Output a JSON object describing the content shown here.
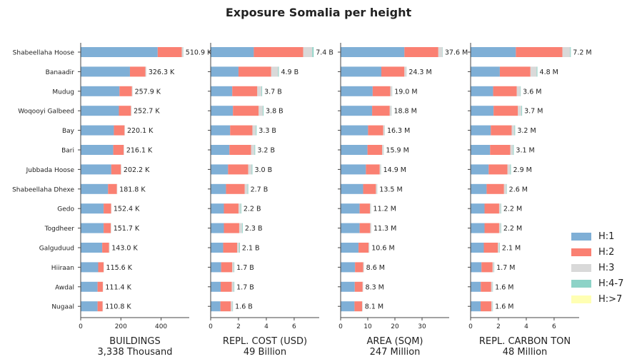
{
  "chart_data": {
    "type": "bar",
    "title": "Exposure Somalia per height",
    "categories": [
      "Shabeellaha Hoose",
      "Banaadir",
      "Mudug",
      "Woqooyi Galbeed",
      "Bay",
      "Bari",
      "Jubbada Hoose",
      "Shabeellaha Dhexe",
      "Gedo",
      "Togdheer",
      "Galguduud",
      "Hiiraan",
      "Awdal",
      "Nugaal"
    ],
    "legend": {
      "placement": "right",
      "entries": [
        {
          "name": "H:1",
          "color": "#7fafd6"
        },
        {
          "name": "H:2",
          "color": "#fa8072"
        },
        {
          "name": "H:3",
          "color": "#d9d9d9"
        },
        {
          "name": "H:4-7",
          "color": "#8dd3c7"
        },
        {
          "name": "H:>7",
          "color": "#ffffb3"
        }
      ]
    },
    "panels": [
      {
        "xlabel": "BUILDINGS",
        "xlabel_total": "3,338 Thousand",
        "xlim": [
          0,
          540
        ],
        "ticks": [
          0,
          200,
          400
        ],
        "tick_labels": [
          "0",
          "200",
          "400"
        ],
        "totals_labels": [
          "510.9 K",
          "326.3 K",
          "257.9 K",
          "252.7 K",
          "220.1 K",
          "216.1 K",
          "202.2 K",
          "181.8 K",
          "152.4 K",
          "151.7 K",
          "143.0 K",
          "115.6 K",
          "111.4 K",
          "110.8 K"
        ],
        "series": [
          {
            "name": "H:1",
            "values": [
              383,
              245,
              193,
              190,
              165,
              162,
              152,
              136,
              114,
              114,
              107,
              87,
              84,
              84
            ]
          },
          {
            "name": "H:2",
            "values": [
              120,
              77,
              62,
              60,
              53,
              52,
              48,
              44,
              37,
              36,
              34,
              27,
              26,
              25
            ]
          },
          {
            "name": "H:3",
            "values": [
              7,
              4,
              2.5,
              2.5,
              2,
              2,
              2,
              1.7,
              1.4,
              1.4,
              1.4,
              1.4,
              1.2,
              1.6
            ]
          },
          {
            "name": "H:4-7",
            "values": [
              0.9,
              0.3,
              0.4,
              0.2,
              0.1,
              0.1,
              0.2,
              0.1,
              0,
              0.3,
              0.6,
              0.2,
              0.2,
              0.2
            ]
          },
          {
            "name": "H:>7",
            "values": [
              0,
              0,
              0,
              0,
              0,
              0,
              0,
              0,
              0,
              0,
              0,
              0,
              0,
              0
            ]
          }
        ]
      },
      {
        "xlabel": "REPL. COST (USD)",
        "xlabel_total": "49 Billion",
        "xlim": [
          0,
          7.8
        ],
        "ticks": [
          0,
          2,
          4,
          6
        ],
        "tick_labels": [
          "0",
          "2",
          "4",
          "6"
        ],
        "totals_labels": [
          "7.4 B",
          "4.9 B",
          "3.7 B",
          "3.8 B",
          "3.3 B",
          "3.2 B",
          "3.0 B",
          "2.7 B",
          "2.2 B",
          "2.3 B",
          "2.1 B",
          "1.7 B",
          "1.7 B",
          "1.6 B"
        ],
        "series": [
          {
            "name": "H:1",
            "values": [
              3.1,
              2.0,
              1.55,
              1.6,
              1.4,
              1.35,
              1.25,
              1.1,
              0.95,
              0.95,
              0.9,
              0.75,
              0.72,
              0.7
            ]
          },
          {
            "name": "H:2",
            "values": [
              3.55,
              2.35,
              1.8,
              1.85,
              1.6,
              1.55,
              1.45,
              1.35,
              1.05,
              1.1,
              1.0,
              0.8,
              0.8,
              0.75
            ]
          },
          {
            "name": "H:3",
            "values": [
              0.65,
              0.5,
              0.3,
              0.3,
              0.25,
              0.25,
              0.25,
              0.2,
              0.15,
              0.2,
              0.15,
              0.12,
              0.14,
              0.12
            ]
          },
          {
            "name": "H:4-7",
            "values": [
              0.1,
              0.05,
              0.05,
              0.05,
              0.05,
              0.05,
              0.05,
              0.05,
              0.05,
              0.05,
              0.05,
              0.03,
              0.04,
              0.03
            ]
          },
          {
            "name": "H:>7",
            "values": [
              0,
              0,
              0,
              0,
              0,
              0,
              0,
              0,
              0,
              0,
              0,
              0,
              0,
              0
            ]
          }
        ]
      },
      {
        "xlabel": "AREA (SQM)",
        "xlabel_total": "247 Million",
        "xlim": [
          0,
          40
        ],
        "ticks": [
          0,
          10,
          20,
          30
        ],
        "tick_labels": [
          "0",
          "10",
          "20",
          "30"
        ],
        "totals_labels": [
          "37.6 M",
          "24.3 M",
          "19.0 M",
          "18.8 M",
          "16.3 M",
          "15.9 M",
          "14.9 M",
          "13.5 M",
          "11.2 M",
          "11.3 M",
          "10.6 M",
          "8.6 M",
          "8.3 M",
          "8.1 M"
        ],
        "series": [
          {
            "name": "H:1",
            "values": [
              23.5,
              15.0,
              11.8,
              11.6,
              10.1,
              9.9,
              9.3,
              8.3,
              7.0,
              7.0,
              6.6,
              5.3,
              5.2,
              5.1
            ]
          },
          {
            "name": "H:2",
            "values": [
              12.5,
              8.5,
              6.5,
              6.5,
              5.6,
              5.4,
              5.1,
              4.7,
              3.8,
              3.9,
              3.7,
              3.0,
              2.9,
              2.8
            ]
          },
          {
            "name": "H:3",
            "values": [
              1.5,
              0.75,
              0.65,
              0.65,
              0.55,
              0.55,
              0.45,
              0.45,
              0.38,
              0.38,
              0.28,
              0.28,
              0.18,
              0.18
            ]
          },
          {
            "name": "H:4-7",
            "values": [
              0.1,
              0.05,
              0.05,
              0.05,
              0.05,
              0.05,
              0.05,
              0.05,
              0.02,
              0.02,
              0.02,
              0.02,
              0.02,
              0.02
            ]
          },
          {
            "name": "H:>7",
            "values": [
              0,
              0,
              0,
              0,
              0,
              0,
              0,
              0,
              0,
              0,
              0,
              0,
              0,
              0
            ]
          }
        ]
      },
      {
        "xlabel": "REPL. CARBON TON",
        "xlabel_total": "48 Million",
        "xlim": [
          0,
          7.8
        ],
        "ticks": [
          0,
          2,
          4,
          6
        ],
        "tick_labels": [
          "0",
          "2",
          "4",
          "6"
        ],
        "totals_labels": [
          "7.2 M",
          "4.8 M",
          "3.6 M",
          "3.7 M",
          "3.2 M",
          "3.1 M",
          "2.9 M",
          "2.6 M",
          "2.2 M",
          "2.2 M",
          "2.1 M",
          "1.7 M",
          "1.6 M",
          "1.6 M"
        ],
        "series": [
          {
            "name": "H:1",
            "values": [
              3.25,
              2.1,
              1.62,
              1.65,
              1.45,
              1.4,
              1.3,
              1.15,
              1.0,
              1.0,
              0.95,
              0.78,
              0.73,
              0.72
            ]
          },
          {
            "name": "H:2",
            "values": [
              3.35,
              2.2,
              1.7,
              1.75,
              1.5,
              1.45,
              1.35,
              1.25,
              1.05,
              1.05,
              1.0,
              0.8,
              0.75,
              0.77
            ]
          },
          {
            "name": "H:3",
            "values": [
              0.55,
              0.45,
              0.25,
              0.25,
              0.2,
              0.2,
              0.2,
              0.17,
              0.12,
              0.12,
              0.12,
              0.1,
              0.1,
              0.09
            ]
          },
          {
            "name": "H:4-7",
            "values": [
              0.05,
              0.05,
              0.03,
              0.05,
              0.05,
              0.05,
              0.05,
              0.03,
              0.03,
              0.03,
              0.03,
              0.02,
              0.02,
              0.02
            ]
          },
          {
            "name": "H:>7",
            "values": [
              0,
              0,
              0,
              0,
              0,
              0,
              0,
              0,
              0,
              0,
              0,
              0,
              0,
              0
            ]
          }
        ]
      }
    ]
  }
}
